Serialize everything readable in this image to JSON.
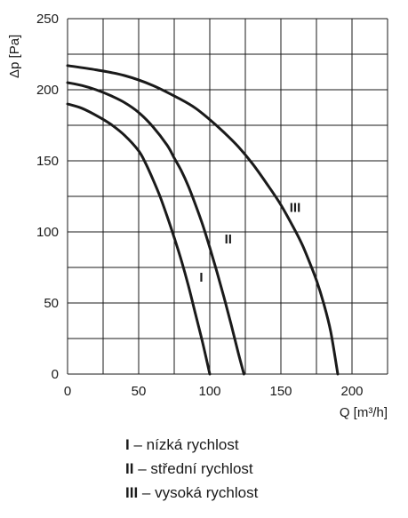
{
  "chart_data": {
    "type": "line",
    "title": "",
    "xlabel": "Q [m³/h]",
    "ylabel": "Δp [Pa]",
    "xlim": [
      0,
      225
    ],
    "ylim": [
      0,
      250
    ],
    "xticks": [
      0,
      50,
      100,
      150,
      200
    ],
    "yticks": [
      0,
      50,
      100,
      150,
      200,
      250
    ],
    "grid": true,
    "line_color": "#1a1a1a",
    "series": [
      {
        "name": "I",
        "label_at": [
          94,
          65
        ],
        "x": [
          0,
          10,
          20,
          30,
          40,
          50,
          55,
          60,
          65,
          70,
          75,
          80,
          85,
          90,
          95,
          100
        ],
        "y": [
          190,
          187,
          182,
          176,
          168,
          157,
          148,
          137,
          125,
          111,
          96,
          80,
          62,
          42,
          22,
          0
        ]
      },
      {
        "name": "II",
        "label_at": [
          113,
          92
        ],
        "x": [
          0,
          10,
          20,
          30,
          40,
          50,
          60,
          70,
          75,
          80,
          85,
          90,
          95,
          100,
          105,
          110,
          115,
          120,
          124
        ],
        "y": [
          205,
          203,
          200,
          196,
          191,
          184,
          174,
          161,
          152,
          143,
          132,
          119,
          105,
          89,
          72,
          54,
          35,
          15,
          0
        ]
      },
      {
        "name": "III",
        "label_at": [
          160,
          114
        ],
        "x": [
          0,
          20,
          40,
          60,
          80,
          90,
          100,
          110,
          120,
          130,
          140,
          150,
          160,
          165,
          170,
          175,
          180,
          185,
          190
        ],
        "y": [
          217,
          214,
          210,
          203,
          193,
          187,
          179,
          170,
          160,
          148,
          134,
          119,
          101,
          91,
          79,
          66,
          50,
          30,
          0
        ]
      }
    ]
  },
  "legend": [
    {
      "key": "I",
      "text": "– nízká rychlost"
    },
    {
      "key": "II",
      "text": "– střední rychlost"
    },
    {
      "key": "III",
      "text": "– vysoká rychlost"
    }
  ]
}
